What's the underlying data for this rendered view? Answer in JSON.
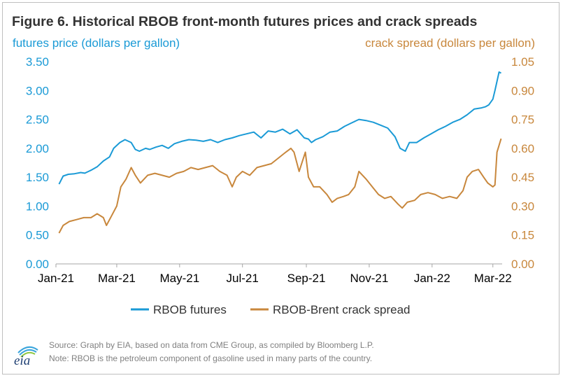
{
  "title": "Figure 6. Historical RBOB front-month futures prices and crack spreads",
  "source": "Source: Graph by EIA, based on data from CME Group, as compiled by Bloomberg L.P.",
  "note": "Note: RBOB is the petroleum component of gasoline used in many parts of the country.",
  "logo_text": "eia",
  "colors": {
    "futures": "#1a9ad6",
    "crack": "#c8873c",
    "axis": "#a6a6a6",
    "text": "#333333"
  },
  "chart_data": {
    "type": "line",
    "ylabel_left": "futures price (dollars per gallon)",
    "ylabel_right": "crack spread (dollars per gallon)",
    "ylim_left": [
      0,
      3.5
    ],
    "ylim_right": [
      0,
      1.05
    ],
    "yticks_left": [
      "0.00",
      "0.50",
      "1.00",
      "1.50",
      "2.00",
      "2.50",
      "3.00",
      "3.50"
    ],
    "yticks_right": [
      "0.00",
      "0.15",
      "0.30",
      "0.45",
      "0.60",
      "0.75",
      "0.90",
      "1.05"
    ],
    "xlim": [
      "2021-01-01",
      "2022-03-10"
    ],
    "xticks": [
      {
        "date": "2021-01-01",
        "label": "Jan-21"
      },
      {
        "date": "2021-03-01",
        "label": "Mar-21"
      },
      {
        "date": "2021-05-01",
        "label": "May-21"
      },
      {
        "date": "2021-07-01",
        "label": "Jul-21"
      },
      {
        "date": "2021-09-01",
        "label": "Sep-21"
      },
      {
        "date": "2021-11-01",
        "label": "Nov-21"
      },
      {
        "date": "2022-01-01",
        "label": "Jan-22"
      },
      {
        "date": "2022-03-01",
        "label": "Mar-22"
      }
    ],
    "grid": false,
    "legend_position": "bottom",
    "series": [
      {
        "name": "RBOB futures",
        "axis": "left",
        "points": [
          [
            "2021-01-04",
            1.38
          ],
          [
            "2021-01-08",
            1.52
          ],
          [
            "2021-01-13",
            1.55
          ],
          [
            "2021-01-19",
            1.56
          ],
          [
            "2021-01-25",
            1.58
          ],
          [
            "2021-01-29",
            1.57
          ],
          [
            "2021-02-04",
            1.62
          ],
          [
            "2021-02-10",
            1.68
          ],
          [
            "2021-02-16",
            1.78
          ],
          [
            "2021-02-22",
            1.85
          ],
          [
            "2021-02-26",
            2.0
          ],
          [
            "2021-03-04",
            2.1
          ],
          [
            "2021-03-09",
            2.15
          ],
          [
            "2021-03-15",
            2.1
          ],
          [
            "2021-03-19",
            1.98
          ],
          [
            "2021-03-23",
            1.95
          ],
          [
            "2021-03-29",
            2.0
          ],
          [
            "2021-04-02",
            1.98
          ],
          [
            "2021-04-08",
            2.02
          ],
          [
            "2021-04-14",
            2.05
          ],
          [
            "2021-04-20",
            2.0
          ],
          [
            "2021-04-26",
            2.08
          ],
          [
            "2021-05-03",
            2.12
          ],
          [
            "2021-05-10",
            2.15
          ],
          [
            "2021-05-17",
            2.14
          ],
          [
            "2021-05-24",
            2.12
          ],
          [
            "2021-05-31",
            2.15
          ],
          [
            "2021-06-07",
            2.1
          ],
          [
            "2021-06-14",
            2.15
          ],
          [
            "2021-06-21",
            2.18
          ],
          [
            "2021-06-28",
            2.22
          ],
          [
            "2021-07-05",
            2.25
          ],
          [
            "2021-07-12",
            2.28
          ],
          [
            "2021-07-19",
            2.18
          ],
          [
            "2021-07-26",
            2.3
          ],
          [
            "2021-08-02",
            2.28
          ],
          [
            "2021-08-09",
            2.33
          ],
          [
            "2021-08-16",
            2.25
          ],
          [
            "2021-08-23",
            2.32
          ],
          [
            "2021-08-30",
            2.18
          ],
          [
            "2021-09-03",
            2.16
          ],
          [
            "2021-09-06",
            2.1
          ],
          [
            "2021-09-10",
            2.15
          ],
          [
            "2021-09-17",
            2.2
          ],
          [
            "2021-09-24",
            2.28
          ],
          [
            "2021-10-01",
            2.3
          ],
          [
            "2021-10-08",
            2.38
          ],
          [
            "2021-10-15",
            2.44
          ],
          [
            "2021-10-22",
            2.5
          ],
          [
            "2021-10-29",
            2.48
          ],
          [
            "2021-11-05",
            2.45
          ],
          [
            "2021-11-12",
            2.4
          ],
          [
            "2021-11-19",
            2.35
          ],
          [
            "2021-11-26",
            2.2
          ],
          [
            "2021-12-01",
            2.0
          ],
          [
            "2021-12-06",
            1.95
          ],
          [
            "2021-12-10",
            2.1
          ],
          [
            "2021-12-17",
            2.1
          ],
          [
            "2021-12-24",
            2.18
          ],
          [
            "2021-12-31",
            2.25
          ],
          [
            "2022-01-07",
            2.32
          ],
          [
            "2022-01-14",
            2.38
          ],
          [
            "2022-01-21",
            2.45
          ],
          [
            "2022-01-28",
            2.5
          ],
          [
            "2022-02-04",
            2.58
          ],
          [
            "2022-02-11",
            2.68
          ],
          [
            "2022-02-18",
            2.7
          ],
          [
            "2022-02-22",
            2.72
          ],
          [
            "2022-02-25",
            2.75
          ],
          [
            "2022-03-01",
            2.85
          ],
          [
            "2022-03-03",
            3.0
          ],
          [
            "2022-03-07",
            3.32
          ],
          [
            "2022-03-09",
            3.3
          ]
        ]
      },
      {
        "name": "RBOB-Brent crack spread",
        "axis": "right",
        "points": [
          [
            "2021-01-04",
            0.16
          ],
          [
            "2021-01-08",
            0.2
          ],
          [
            "2021-01-14",
            0.22
          ],
          [
            "2021-01-21",
            0.23
          ],
          [
            "2021-01-28",
            0.24
          ],
          [
            "2021-02-04",
            0.24
          ],
          [
            "2021-02-10",
            0.26
          ],
          [
            "2021-02-16",
            0.24
          ],
          [
            "2021-02-19",
            0.2
          ],
          [
            "2021-02-24",
            0.25
          ],
          [
            "2021-03-01",
            0.3
          ],
          [
            "2021-03-05",
            0.4
          ],
          [
            "2021-03-10",
            0.44
          ],
          [
            "2021-03-15",
            0.5
          ],
          [
            "2021-03-19",
            0.46
          ],
          [
            "2021-03-24",
            0.42
          ],
          [
            "2021-03-31",
            0.46
          ],
          [
            "2021-04-07",
            0.47
          ],
          [
            "2021-04-14",
            0.46
          ],
          [
            "2021-04-21",
            0.45
          ],
          [
            "2021-04-28",
            0.47
          ],
          [
            "2021-05-05",
            0.48
          ],
          [
            "2021-05-12",
            0.5
          ],
          [
            "2021-05-19",
            0.49
          ],
          [
            "2021-05-26",
            0.5
          ],
          [
            "2021-06-02",
            0.51
          ],
          [
            "2021-06-09",
            0.48
          ],
          [
            "2021-06-16",
            0.46
          ],
          [
            "2021-06-21",
            0.4
          ],
          [
            "2021-06-25",
            0.45
          ],
          [
            "2021-07-01",
            0.48
          ],
          [
            "2021-07-08",
            0.46
          ],
          [
            "2021-07-15",
            0.5
          ],
          [
            "2021-07-22",
            0.51
          ],
          [
            "2021-07-29",
            0.52
          ],
          [
            "2021-08-05",
            0.55
          ],
          [
            "2021-08-12",
            0.58
          ],
          [
            "2021-08-17",
            0.6
          ],
          [
            "2021-08-20",
            0.58
          ],
          [
            "2021-08-25",
            0.48
          ],
          [
            "2021-08-31",
            0.58
          ],
          [
            "2021-09-03",
            0.45
          ],
          [
            "2021-09-08",
            0.4
          ],
          [
            "2021-09-14",
            0.4
          ],
          [
            "2021-09-21",
            0.36
          ],
          [
            "2021-09-26",
            0.32
          ],
          [
            "2021-10-01",
            0.34
          ],
          [
            "2021-10-07",
            0.35
          ],
          [
            "2021-10-12",
            0.36
          ],
          [
            "2021-10-18",
            0.4
          ],
          [
            "2021-10-22",
            0.48
          ],
          [
            "2021-10-29",
            0.44
          ],
          [
            "2021-11-04",
            0.4
          ],
          [
            "2021-11-10",
            0.36
          ],
          [
            "2021-11-16",
            0.34
          ],
          [
            "2021-11-22",
            0.35
          ],
          [
            "2021-11-29",
            0.31
          ],
          [
            "2021-12-03",
            0.29
          ],
          [
            "2021-12-08",
            0.32
          ],
          [
            "2021-12-15",
            0.33
          ],
          [
            "2021-12-21",
            0.36
          ],
          [
            "2021-12-28",
            0.37
          ],
          [
            "2022-01-04",
            0.36
          ],
          [
            "2022-01-11",
            0.34
          ],
          [
            "2022-01-18",
            0.35
          ],
          [
            "2022-01-25",
            0.34
          ],
          [
            "2022-01-31",
            0.38
          ],
          [
            "2022-02-04",
            0.45
          ],
          [
            "2022-02-09",
            0.48
          ],
          [
            "2022-02-15",
            0.49
          ],
          [
            "2022-02-20",
            0.45
          ],
          [
            "2022-02-24",
            0.42
          ],
          [
            "2022-03-01",
            0.4
          ],
          [
            "2022-03-03",
            0.41
          ],
          [
            "2022-03-05",
            0.58
          ],
          [
            "2022-03-09",
            0.65
          ]
        ]
      }
    ]
  }
}
